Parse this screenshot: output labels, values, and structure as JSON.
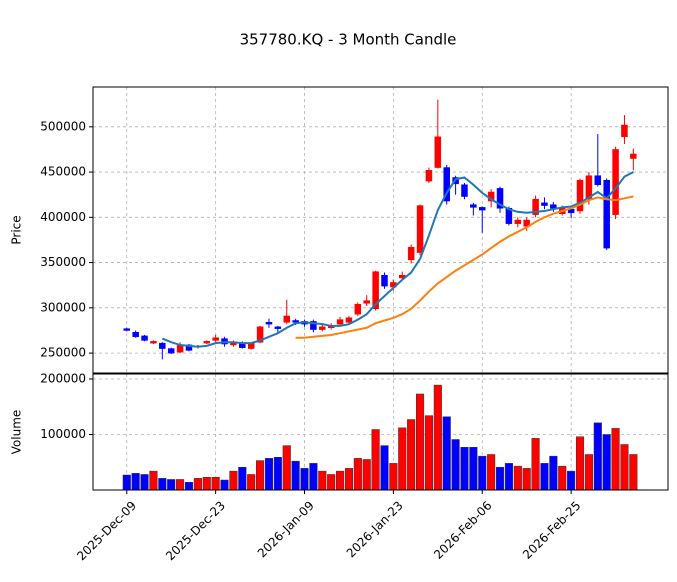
{
  "chart_data": {
    "type": "candlestick",
    "title": "357780.KQ - 3 Month Candle",
    "ylabel": "Price",
    "volume_ylabel": "Volume",
    "grid": true,
    "up_color": "#ff0000",
    "down_color": "#0000ff",
    "xlim": [
      -3.8,
      60.9
    ],
    "xticks": [
      {
        "value": 0,
        "label": "2025-Dec-09"
      },
      {
        "value": 10,
        "label": "2025-Dec-23"
      },
      {
        "value": 20,
        "label": "2026-Jan-09"
      },
      {
        "value": 30,
        "label": "2026-Jan-23"
      },
      {
        "value": 40,
        "label": "2026-Feb-06"
      },
      {
        "value": 50,
        "label": "2026-Feb-25"
      }
    ],
    "ylim": [
      228000,
      544000
    ],
    "yticks": [
      250000,
      300000,
      350000,
      400000,
      450000,
      500000
    ],
    "volume_ylim": [
      0,
      209000
    ],
    "volume_yticks": [
      100000,
      200000
    ],
    "open": [
      277000,
      273000,
      269000,
      261000,
      261000,
      255000,
      251000,
      259000,
      257000,
      261000,
      264000,
      266000,
      259000,
      261000,
      255000,
      262000,
      284000,
      279000,
      284000,
      286000,
      285000,
      285000,
      276000,
      278000,
      282000,
      284000,
      293000,
      305000,
      299000,
      336000,
      323000,
      333000,
      353000,
      361000,
      440000,
      455000,
      455000,
      444000,
      436000,
      414000,
      411000,
      418000,
      432000,
      410000,
      393000,
      390000,
      403000,
      416000,
      414000,
      404000,
      409000,
      407000,
      420000,
      446000,
      441000,
      403000,
      489000,
      465000
    ],
    "high": [
      278000,
      275000,
      270000,
      264000,
      262000,
      256000,
      262000,
      260000,
      259000,
      264000,
      270000,
      268000,
      264000,
      263000,
      262000,
      280000,
      288000,
      280000,
      309000,
      288000,
      287000,
      287000,
      283000,
      283000,
      290000,
      291000,
      306000,
      314000,
      341000,
      339000,
      331000,
      340000,
      370000,
      414000,
      455000,
      530000,
      458000,
      446000,
      438000,
      416000,
      412000,
      431000,
      434000,
      412000,
      400000,
      400000,
      424000,
      422000,
      417000,
      413000,
      412000,
      443000,
      450000,
      492000,
      443000,
      478000,
      513000,
      476000
    ],
    "low": [
      274000,
      267000,
      263000,
      260000,
      243000,
      249000,
      250000,
      252000,
      255000,
      260000,
      262000,
      257000,
      257000,
      255000,
      254000,
      261000,
      278000,
      272000,
      282000,
      281000,
      279000,
      273000,
      274000,
      276000,
      280000,
      283000,
      291000,
      302000,
      297000,
      321000,
      319000,
      330000,
      349000,
      358000,
      438000,
      454000,
      414000,
      425000,
      420000,
      402000,
      383000,
      411000,
      405000,
      391000,
      389000,
      385000,
      400000,
      409000,
      406000,
      402000,
      399000,
      404000,
      414000,
      434000,
      364000,
      398000,
      481000,
      452000
    ],
    "close": [
      275000,
      268000,
      264000,
      263000,
      255000,
      250000,
      259000,
      253000,
      258000,
      263000,
      267000,
      260000,
      262000,
      256000,
      261000,
      279000,
      282000,
      277000,
      291000,
      284000,
      282000,
      276000,
      279000,
      280000,
      287000,
      289000,
      304000,
      308000,
      340000,
      324000,
      328000,
      336000,
      367000,
      413000,
      452000,
      489000,
      418000,
      437000,
      423000,
      411000,
      408000,
      428000,
      410000,
      393000,
      397000,
      397000,
      420000,
      413000,
      410000,
      410000,
      405000,
      441000,
      446000,
      436000,
      366000,
      475000,
      502000,
      470000
    ],
    "volume": [
      27000,
      30000,
      28000,
      34000,
      21000,
      19000,
      19000,
      14000,
      21000,
      23000,
      23000,
      18000,
      34000,
      41000,
      28000,
      53000,
      57000,
      59000,
      80000,
      52000,
      39000,
      48000,
      34000,
      28000,
      34000,
      39000,
      57000,
      55000,
      109000,
      80000,
      48000,
      112000,
      127000,
      173000,
      134000,
      189000,
      132000,
      91000,
      77000,
      77000,
      61000,
      64000,
      41000,
      48000,
      43000,
      39000,
      93000,
      48000,
      61000,
      43000,
      34000,
      96000,
      64000,
      121000,
      100000,
      111000,
      82000,
      64000
    ],
    "ma_lines": [
      {
        "color": "#1f77b4",
        "values": [
          null,
          null,
          null,
          null,
          266000,
          262000,
          259000,
          258000,
          257000,
          258000,
          261000,
          262000,
          262000,
          261000,
          261000,
          264000,
          268000,
          272000,
          278000,
          283000,
          284000,
          283000,
          282000,
          280000,
          280000,
          282000,
          287000,
          293000,
          304000,
          313000,
          322000,
          331000,
          339000,
          354000,
          380000,
          408000,
          427000,
          442000,
          444000,
          436000,
          427000,
          420000,
          414000,
          409000,
          406000,
          405000,
          406000,
          407000,
          409000,
          411000,
          412000,
          416000,
          422000,
          428000,
          421000,
          432000,
          445000,
          450000
        ]
      },
      {
        "color": "#ff7f0e",
        "values": [
          null,
          null,
          null,
          null,
          null,
          null,
          null,
          null,
          null,
          null,
          null,
          null,
          null,
          null,
          null,
          null,
          null,
          null,
          null,
          267000,
          267000,
          268000,
          269000,
          270000,
          272000,
          274000,
          276000,
          278000,
          283000,
          286000,
          289000,
          293000,
          299000,
          308000,
          318000,
          327000,
          334000,
          341000,
          347000,
          353000,
          359000,
          366000,
          373000,
          379000,
          384000,
          389000,
          395000,
          400000,
          404000,
          407000,
          410000,
          414000,
          419000,
          422000,
          420000,
          419000,
          421000,
          423000
        ]
      }
    ]
  }
}
